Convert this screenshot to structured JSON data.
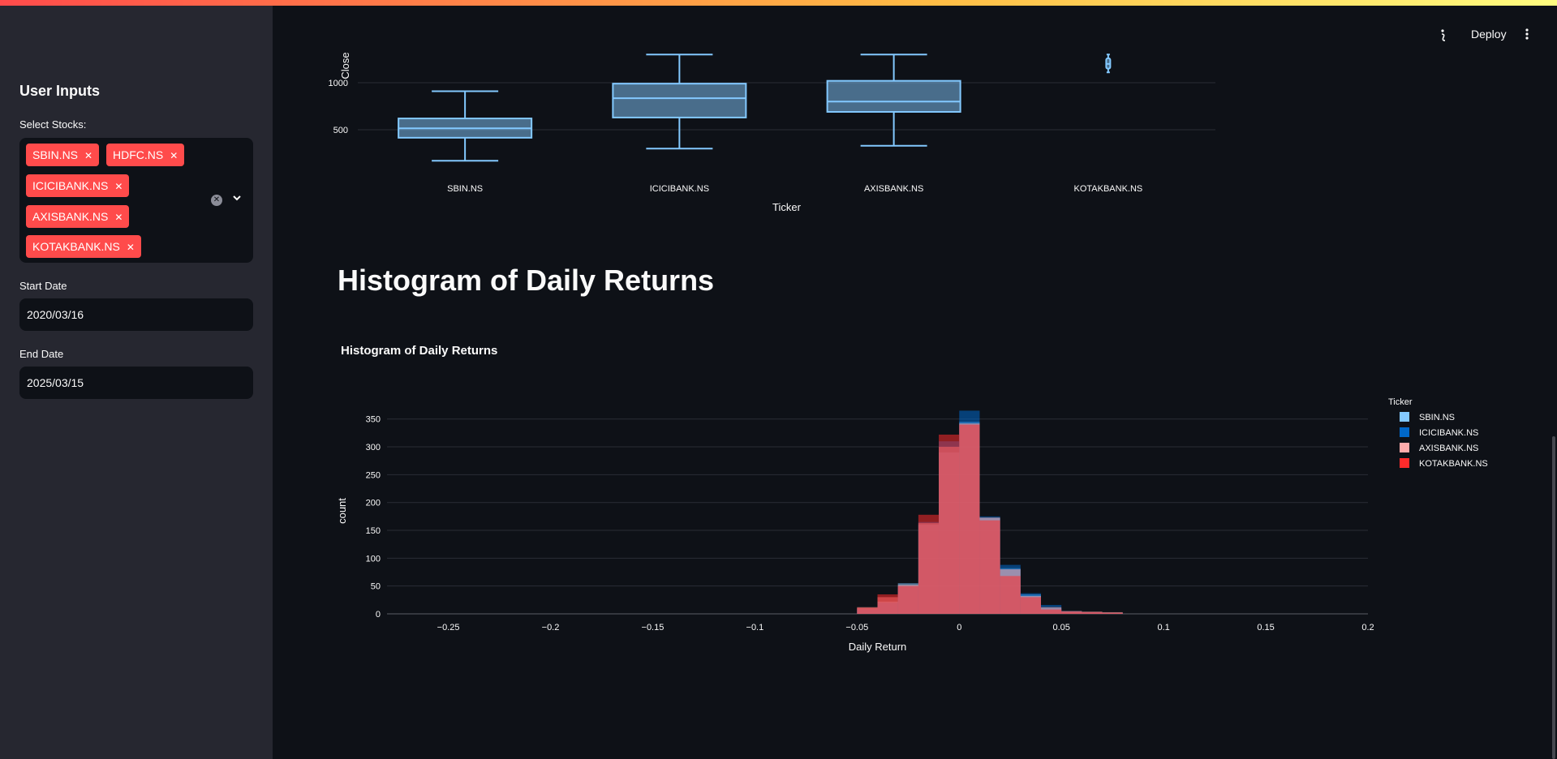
{
  "sidebar": {
    "title": "User Inputs",
    "stocks_label": "Select Stocks:",
    "selected_stocks": [
      "SBIN.NS",
      "HDFC.NS",
      "ICICIBANK.NS",
      "AXISBANK.NS",
      "KOTAKBANK.NS"
    ],
    "start_date_label": "Start Date",
    "start_date_value": "2020/03/16",
    "end_date_label": "End Date",
    "end_date_value": "2025/03/15"
  },
  "header": {
    "deploy_label": "Deploy"
  },
  "main": {
    "heading": "Histogram of Daily Returns"
  },
  "colors": {
    "accent": "#ff4b4b",
    "background": "#0e1117",
    "sidebar": "#262730"
  },
  "chart_data": [
    {
      "type": "box",
      "xlabel": "Ticker",
      "ylabel": "Close",
      "yticks": [
        500,
        1000
      ],
      "categories": [
        "SBIN.NS",
        "ICICIBANK.NS",
        "AXISBANK.NS",
        "KOTAKBANK.NS"
      ],
      "boxes": [
        {
          "name": "SBIN.NS",
          "min": 170,
          "q1": 415,
          "median": 515,
          "q3": 620,
          "max": 910
        },
        {
          "name": "ICICIBANK.NS",
          "min": 300,
          "q1": 630,
          "median": 835,
          "q3": 990,
          "max": 1300
        },
        {
          "name": "AXISBANK.NS",
          "min": 330,
          "q1": 690,
          "median": 800,
          "q3": 1020,
          "max": 1300
        },
        {
          "name": "KOTAKBANK.NS",
          "min": 1110,
          "q1": 1150,
          "median": 1200,
          "q3": 1260,
          "max": 1300
        }
      ]
    },
    {
      "type": "histogram",
      "title": "Histogram of Daily Returns",
      "xlabel": "Daily Return",
      "ylabel": "count",
      "xticks": [
        -0.25,
        -0.2,
        -0.15,
        -0.1,
        -0.05,
        0,
        0.05,
        0.1,
        0.15,
        0.2
      ],
      "yticks": [
        0,
        50,
        100,
        150,
        200,
        250,
        300,
        350
      ],
      "xlim": [
        -0.28,
        0.2
      ],
      "ylim": [
        0,
        370
      ],
      "bin_width": 0.01,
      "bin_starts": [
        -0.05,
        -0.04,
        -0.03,
        -0.02,
        -0.01,
        0,
        0.01,
        0.02,
        0.03,
        0.04,
        0.05,
        0.06,
        0.07
      ],
      "legend_title": "Ticker",
      "legend_position": "right",
      "series": [
        {
          "name": "SBIN.NS",
          "color": "#83c9ff",
          "counts": [
            10,
            22,
            55,
            160,
            290,
            345,
            172,
            82,
            35,
            10,
            4,
            3,
            2
          ]
        },
        {
          "name": "ICICIBANK.NS",
          "color": "#0068c9",
          "counts": [
            8,
            20,
            50,
            165,
            310,
            365,
            175,
            88,
            37,
            16,
            5,
            3,
            2
          ]
        },
        {
          "name": "AXISBANK.NS",
          "color": "#ffabab",
          "counts": [
            12,
            30,
            52,
            163,
            300,
            342,
            173,
            80,
            32,
            12,
            5,
            4,
            3
          ]
        },
        {
          "name": "KOTAKBANK.NS",
          "color": "#ff2b2b",
          "counts": [
            11,
            35,
            50,
            178,
            322,
            340,
            168,
            68,
            30,
            8,
            4,
            3,
            2
          ]
        }
      ]
    }
  ]
}
